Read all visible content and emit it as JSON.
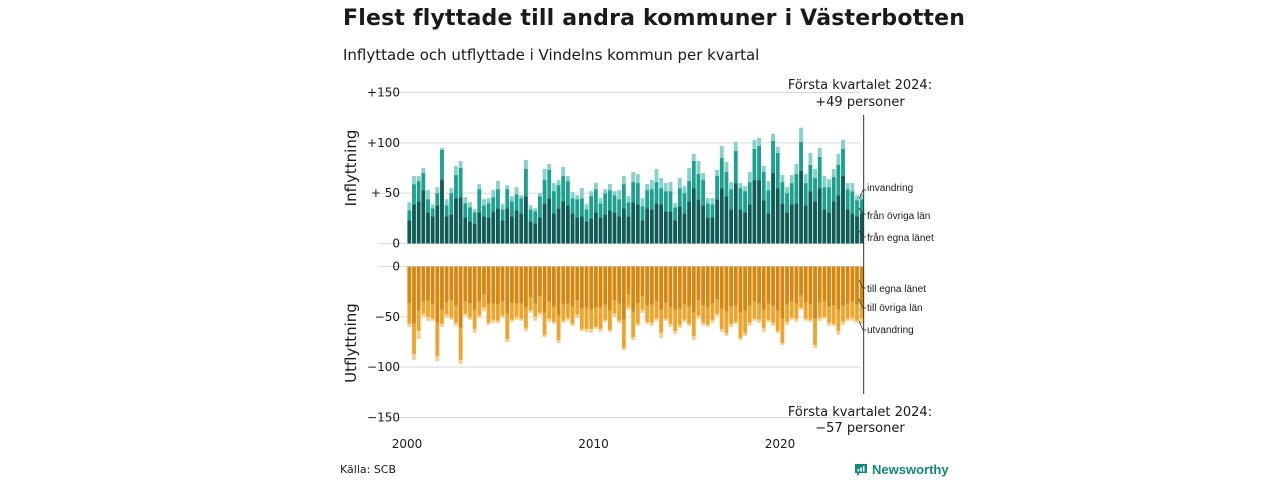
{
  "title": "Flest flyttade till andra kommuner i Västerbotten",
  "subtitle": "Inflyttade och utflyttade i Vindelns kommun per kvartal",
  "source": "Källa: SCB",
  "brand": "Newsworthy",
  "colors": {
    "in_egna": "#0e5c55",
    "in_ovriga": "#1fa08e",
    "in_invandring": "#86d2c8",
    "out_egna": "#d9860f",
    "out_ovriga": "#f2a32a",
    "out_utvandring": "#fbcf8a",
    "brand": "#15877a"
  },
  "chart_data": {
    "type": "bar",
    "stacked": true,
    "x_start": "2000 Q1",
    "x_end": "2024 Q1",
    "x_ticks": [
      "2000",
      "2010",
      "2020"
    ],
    "panels": [
      {
        "axis_title": "Inflyttning",
        "ylim": [
          0,
          150
        ],
        "y_ticks": [
          {
            "value": 150,
            "label": "+150"
          },
          {
            "value": 100,
            "label": "+100"
          },
          {
            "value": 50,
            "label": "+ 50"
          },
          {
            "value": 0,
            "label": "0"
          }
        ],
        "annotation": {
          "line1": "Första kvartalet 2024:",
          "line2": "+49 personer"
        },
        "series": [
          {
            "name": "från egna länet",
            "values": [
              23,
              39,
              42,
              53,
              31,
              27,
              38,
              63,
              27,
              29,
              45,
              46,
              26,
              22,
              20,
              31,
              27,
              26,
              32,
              35,
              23,
              35,
              27,
              33,
              30,
              47,
              22,
              20,
              26,
              40,
              45,
              30,
              35,
              42,
              38,
              30,
              26,
              27,
              22,
              25,
              31,
              26,
              29,
              33,
              31,
              27,
              35,
              27,
              41,
              39,
              23,
              35,
              34,
              40,
              39,
              32,
              32,
              23,
              37,
              30,
              42,
              55,
              44,
              38,
              26,
              26,
              44,
              55,
              47,
              34,
              60,
              34,
              31,
              39,
              63,
              63,
              43,
              30,
              70,
              55,
              40,
              31,
              39,
              40,
              72,
              38,
              52,
              42,
              55,
              34,
              31,
              42,
              48,
              67,
              34,
              30,
              27,
              30
            ]
          },
          {
            "name": "från övriga län",
            "values": [
              10,
              20,
              20,
              17,
              13,
              8,
              12,
              30,
              11,
              21,
              23,
              29,
              14,
              14,
              11,
              23,
              11,
              14,
              14,
              19,
              11,
              19,
              15,
              16,
              15,
              27,
              12,
              12,
              21,
              23,
              28,
              22,
              23,
              25,
              24,
              15,
              18,
              18,
              12,
              22,
              23,
              14,
              21,
              20,
              17,
              17,
              24,
              14,
              20,
              21,
              14,
              18,
              20,
              21,
              16,
              20,
              20,
              13,
              18,
              20,
              20,
              27,
              25,
              25,
              14,
              13,
              23,
              30,
              24,
              20,
              32,
              21,
              21,
              22,
              31,
              34,
              28,
              23,
              32,
              35,
              21,
              19,
              21,
              29,
              29,
              22,
              26,
              23,
              31,
              22,
              25,
              24,
              30,
              27,
              20,
              22,
              16,
              14
            ]
          },
          {
            "name": "invandring",
            "values": [
              8,
              8,
              5,
              5,
              9,
              4,
              6,
              2,
              6,
              5,
              9,
              7,
              6,
              5,
              3,
              5,
              6,
              5,
              7,
              8,
              5,
              4,
              5,
              7,
              3,
              9,
              4,
              3,
              3,
              11,
              6,
              8,
              5,
              9,
              5,
              6,
              4,
              10,
              5,
              5,
              6,
              5,
              4,
              6,
              4,
              9,
              8,
              6,
              10,
              9,
              8,
              6,
              9,
              13,
              10,
              8,
              9,
              4,
              10,
              7,
              13,
              7,
              13,
              7,
              5,
              6,
              6,
              12,
              10,
              7,
              9,
              5,
              5,
              10,
              9,
              8,
              6,
              9,
              7,
              6,
              7,
              6,
              8,
              10,
              14,
              9,
              12,
              9,
              9,
              11,
              8,
              8,
              11,
              9,
              6,
              8,
              5,
              5
            ]
          }
        ],
        "labels": [
          "invandring",
          "från övriga län",
          "från egna länet"
        ]
      },
      {
        "axis_title": "Utflyttning",
        "ylim": [
          -150,
          0
        ],
        "y_ticks": [
          {
            "value": 0,
            "label": "0"
          },
          {
            "value": -50,
            "label": "−50"
          },
          {
            "value": -100,
            "label": "−100"
          },
          {
            "value": -150,
            "label": "−150"
          }
        ],
        "annotation": {
          "line1": "Första kvartalet 2024:",
          "line2": "−57 personer"
        },
        "series": [
          {
            "name": "till egna länet",
            "values": [
              -37,
              -57,
              -44,
              -35,
              -34,
              -38,
              -56,
              -43,
              -36,
              -34,
              -39,
              -61,
              -35,
              -37,
              -43,
              -35,
              -28,
              -38,
              -37,
              -38,
              -35,
              -47,
              -36,
              -37,
              -37,
              -41,
              -31,
              -37,
              -30,
              -46,
              -35,
              -40,
              -49,
              -38,
              -37,
              -40,
              -34,
              -42,
              -41,
              -43,
              -41,
              -41,
              -38,
              -44,
              -34,
              -37,
              -53,
              -28,
              -45,
              -37,
              -30,
              -39,
              -38,
              -35,
              -43,
              -36,
              -41,
              -43,
              -42,
              -38,
              -40,
              -46,
              -34,
              -39,
              -41,
              -37,
              -33,
              -42,
              -45,
              -40,
              -39,
              -46,
              -44,
              -39,
              -35,
              -37,
              -43,
              -37,
              -39,
              -44,
              -52,
              -38,
              -35,
              -37,
              -29,
              -36,
              -38,
              -52,
              -36,
              -35,
              -40,
              -39,
              -43,
              -39,
              -37,
              -35,
              -38,
              -37
            ]
          },
          {
            "name": "till övriga län",
            "values": [
              -20,
              -30,
              -20,
              -12,
              -16,
              -14,
              -33,
              -14,
              -12,
              -17,
              -17,
              -32,
              -12,
              -14,
              -19,
              -14,
              -13,
              -18,
              -16,
              -16,
              -14,
              -25,
              -17,
              -13,
              -15,
              -20,
              -13,
              -13,
              -16,
              -22,
              -17,
              -15,
              -24,
              -16,
              -14,
              -17,
              -14,
              -20,
              -21,
              -19,
              -19,
              -21,
              -15,
              -19,
              -13,
              -17,
              -28,
              -12,
              -25,
              -20,
              -13,
              -16,
              -18,
              -17,
              -23,
              -16,
              -16,
              -21,
              -16,
              -15,
              -17,
              -23,
              -15,
              -17,
              -17,
              -16,
              -14,
              -20,
              -21,
              -17,
              -16,
              -25,
              -22,
              -17,
              -17,
              -16,
              -18,
              -16,
              -17,
              -20,
              -24,
              -17,
              -16,
              -15,
              -12,
              -16,
              -15,
              -26,
              -15,
              -15,
              -16,
              -18,
              -21,
              -16,
              -15,
              -16,
              -16,
              -15
            ]
          },
          {
            "name": "utvandring",
            "values": [
              -3,
              -6,
              -8,
              -3,
              -4,
              -2,
              -5,
              -3,
              -3,
              -2,
              -3,
              -4,
              -2,
              -2,
              -4,
              -2,
              -3,
              -2,
              -3,
              -2,
              -2,
              -3,
              -2,
              -3,
              -2,
              -3,
              -2,
              -4,
              -2,
              -2,
              -3,
              -2,
              -3,
              -2,
              -3,
              -2,
              -3,
              -2,
              -3,
              -4,
              -2,
              -3,
              -2,
              -2,
              -3,
              -2,
              -2,
              -3,
              -3,
              -2,
              -3,
              -2,
              -3,
              -2,
              -5,
              -2,
              -3,
              -3,
              -3,
              -2,
              -2,
              -4,
              -3,
              -3,
              -2,
              -3,
              -2,
              -3,
              -3,
              -3,
              -2,
              -2,
              -3,
              -3,
              -2,
              -3,
              -4,
              -2,
              -3,
              -2,
              -2,
              -3,
              -2,
              -3,
              -2,
              -2,
              -2,
              -3,
              -3,
              -2,
              -3,
              -2,
              -4,
              -3,
              -2,
              -3,
              -2,
              -5
            ]
          }
        ],
        "labels": [
          "till egna länet",
          "till övriga län",
          "utvandring"
        ]
      }
    ]
  }
}
